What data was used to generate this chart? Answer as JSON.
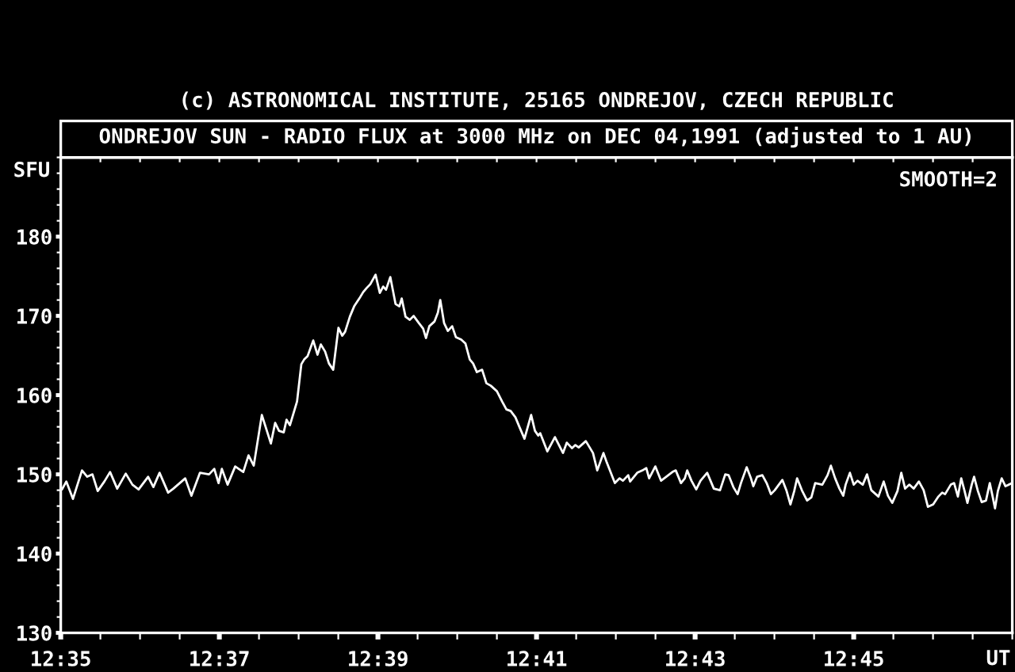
{
  "chart_data": {
    "type": "line",
    "title": "ONDREJOV SUN - RADIO FLUX at 3000 MHz on DEC 04,1991 (adjusted to 1 AU)",
    "xlabel": "UT",
    "ylabel": "SFU",
    "annotations": [
      "(c) ASTRONOMICAL INSTITUTE, 25165 ONDREJOV, CZECH REPUBLIC",
      "SMOOTH=2"
    ],
    "x": [
      12.5836,
      12.5845,
      12.5859,
      12.5878,
      12.5889,
      12.59,
      12.5911,
      12.5925,
      12.5937,
      12.5952,
      12.597,
      12.5984,
      12.5997,
      12.6017,
      12.6028,
      12.6041,
      12.6059,
      12.607,
      12.6095,
      12.6108,
      12.6126,
      12.6145,
      12.6156,
      12.6165,
      12.6172,
      12.6184,
      12.62,
      12.6217,
      12.6228,
      12.6239,
      12.6256,
      12.6275,
      12.6284,
      12.6292,
      12.6302,
      12.6308,
      12.6315,
      12.6325,
      12.633,
      12.6339,
      12.6345,
      12.6352,
      12.6364,
      12.6373,
      12.638,
      12.6389,
      12.6397,
      12.6406,
      12.6417,
      12.6425,
      12.6431,
      12.6441,
      12.645,
      12.6461,
      12.6469,
      12.6476,
      12.6484,
      12.6495,
      12.6504,
      12.6511,
      12.6517,
      12.6526,
      12.6537,
      12.6545,
      12.655,
      12.6558,
      12.6567,
      12.6575,
      12.6586,
      12.6595,
      12.6601,
      12.6608,
      12.6619,
      12.6626,
      12.6631,
      12.6639,
      12.6647,
      12.6656,
      12.6664,
      12.6675,
      12.6684,
      12.6693,
      12.67,
      12.6708,
      12.6719,
      12.6728,
      12.6737,
      12.675,
      12.6761,
      12.677,
      12.6779,
      12.6789,
      12.6798,
      12.6808,
      12.6822,
      12.683,
      12.6837,
      12.6841,
      12.6856,
      12.6872,
      12.6889,
      12.6897,
      12.6908,
      12.6915,
      12.6922,
      12.6937,
      12.6952,
      12.6961,
      12.6974,
      12.6981,
      12.6998,
      12.7008,
      12.7015,
      12.7026,
      12.703,
      12.7045,
      12.7056,
      12.7064,
      12.707,
      12.7083,
      12.7095,
      12.7106,
      12.7119,
      12.7126,
      12.7137,
      12.7145,
      12.715,
      12.7159,
      12.7169,
      12.7178,
      12.7192,
      12.7206,
      12.7219,
      12.723,
      12.7237,
      12.7247,
      12.7256,
      12.7263,
      12.7275,
      12.7284,
      12.7289,
      12.7297,
      12.7308,
      12.7317,
      12.7326,
      12.7334,
      12.735,
      12.7359,
      12.7367,
      12.7375,
      12.7381,
      12.7391,
      12.7402,
      12.7411,
      12.7419,
      12.7434,
      12.7445,
      12.7452,
      12.7461,
      12.747,
      12.7478,
      12.7483,
      12.7492,
      12.75,
      12.7508,
      12.7519,
      12.7528,
      12.7537,
      12.7552,
      12.7563,
      12.7572,
      12.7581,
      12.7592,
      12.76,
      12.7608,
      12.7617,
      12.7626,
      12.7637,
      12.7647,
      12.7656,
      12.7667,
      12.7678,
      12.7686,
      12.7692,
      12.7704,
      12.7711,
      12.7719,
      12.7726,
      12.7733,
      12.7739,
      12.7748,
      12.7753,
      12.7761,
      12.7769,
      12.7778,
      12.7786,
      12.7792,
      12.7797,
      12.7803,
      12.7811,
      12.7819,
      12.7833
    ],
    "series": [
      {
        "color": "#ffffff",
        "values": [
          148.1,
          149.1,
          146.9,
          150.5,
          149.7,
          150.0,
          147.9,
          149.1,
          150.3,
          148.2,
          150.1,
          148.7,
          148.1,
          149.7,
          148.4,
          150.2,
          147.7,
          148.2,
          149.5,
          147.3,
          150.2,
          150.0,
          150.7,
          148.9,
          150.7,
          148.7,
          151.0,
          150.3,
          152.4,
          151.1,
          157.5,
          153.9,
          156.5,
          155.5,
          155.3,
          156.9,
          156.2,
          158.2,
          159.2,
          163.9,
          164.5,
          164.9,
          166.9,
          165.1,
          166.4,
          165.5,
          164.0,
          163.2,
          168.5,
          167.5,
          168.0,
          169.9,
          171.2,
          172.2,
          173.0,
          173.5,
          174.0,
          175.2,
          172.9,
          173.7,
          173.3,
          174.9,
          171.5,
          171.2,
          172.2,
          169.9,
          169.5,
          170.0,
          169.1,
          168.4,
          167.2,
          168.7,
          169.3,
          170.4,
          172.0,
          169.1,
          168.1,
          168.7,
          167.3,
          167.0,
          166.5,
          164.5,
          164.0,
          162.9,
          163.2,
          161.5,
          161.2,
          160.5,
          159.2,
          158.2,
          158.0,
          157.2,
          155.9,
          154.5,
          157.5,
          155.5,
          154.9,
          155.2,
          152.9,
          154.7,
          152.7,
          154.0,
          153.3,
          153.7,
          153.4,
          154.2,
          152.7,
          150.5,
          152.7,
          151.5,
          148.9,
          149.5,
          149.2,
          149.9,
          149.1,
          150.2,
          150.5,
          150.8,
          149.5,
          151.0,
          149.2,
          149.7,
          150.3,
          150.5,
          148.9,
          149.5,
          150.5,
          149.2,
          148.1,
          149.2,
          150.2,
          148.2,
          148.0,
          150.0,
          149.9,
          148.4,
          147.5,
          148.9,
          150.9,
          149.5,
          148.5,
          149.7,
          149.9,
          148.9,
          147.5,
          148.0,
          149.3,
          147.9,
          146.2,
          147.9,
          149.5,
          148.0,
          146.7,
          147.1,
          148.9,
          148.7,
          149.9,
          151.1,
          149.5,
          148.2,
          147.3,
          148.7,
          150.2,
          148.7,
          149.2,
          148.7,
          150.0,
          148.0,
          147.2,
          149.1,
          147.3,
          146.4,
          147.9,
          150.2,
          148.2,
          148.7,
          148.2,
          149.1,
          148.0,
          145.9,
          146.2,
          147.2,
          147.7,
          147.5,
          148.7,
          148.9,
          147.2,
          149.5,
          147.9,
          146.4,
          148.7,
          149.7,
          147.9,
          146.5,
          146.7,
          148.9,
          147.2,
          145.7,
          147.9,
          149.5,
          148.5,
          148.9
        ]
      }
    ],
    "xlim": [
      12.583333,
      12.783333
    ],
    "ylim": [
      130,
      190
    ],
    "xticks": [
      {
        "value": 12.583333,
        "label": "12:35"
      },
      {
        "value": 12.591667,
        "label": null
      },
      {
        "value": 12.6,
        "label": null
      },
      {
        "value": 12.608333,
        "label": null
      },
      {
        "value": 12.616667,
        "label": "12:37"
      },
      {
        "value": 12.625,
        "label": null
      },
      {
        "value": 12.633333,
        "label": null
      },
      {
        "value": 12.641667,
        "label": null
      },
      {
        "value": 12.65,
        "label": "12:39"
      },
      {
        "value": 12.658333,
        "label": null
      },
      {
        "value": 12.666667,
        "label": null
      },
      {
        "value": 12.675,
        "label": null
      },
      {
        "value": 12.683333,
        "label": "12:41"
      },
      {
        "value": 12.691667,
        "label": null
      },
      {
        "value": 12.7,
        "label": null
      },
      {
        "value": 12.708333,
        "label": null
      },
      {
        "value": 12.716667,
        "label": "12:43"
      },
      {
        "value": 12.725,
        "label": null
      },
      {
        "value": 12.733333,
        "label": null
      },
      {
        "value": 12.741667,
        "label": null
      },
      {
        "value": 12.75,
        "label": "12:45"
      },
      {
        "value": 12.758333,
        "label": null
      },
      {
        "value": 12.766667,
        "label": null
      },
      {
        "value": 12.775,
        "label": null
      },
      {
        "value": 12.783333,
        "label": null
      }
    ],
    "yticks": [
      130,
      {
        "value": 132,
        "label": null
      },
      {
        "value": 134,
        "label": null
      },
      {
        "value": 136,
        "label": null
      },
      {
        "value": 138,
        "label": null
      },
      140,
      {
        "value": 142,
        "label": null
      },
      {
        "value": 144,
        "label": null
      },
      {
        "value": 146,
        "label": null
      },
      {
        "value": 148,
        "label": null
      },
      150,
      {
        "value": 152,
        "label": null
      },
      {
        "value": 154,
        "label": null
      },
      {
        "value": 156,
        "label": null
      },
      {
        "value": 158,
        "label": null
      },
      160,
      {
        "value": 162,
        "label": null
      },
      {
        "value": 164,
        "label": null
      },
      {
        "value": 166,
        "label": null
      },
      {
        "value": 168,
        "label": null
      },
      170,
      {
        "value": 172,
        "label": null
      },
      {
        "value": 174,
        "label": null
      },
      {
        "value": 176,
        "label": null
      },
      {
        "value": 178,
        "label": null
      },
      180,
      {
        "value": 182,
        "label": null
      },
      {
        "value": 184,
        "label": null
      },
      {
        "value": 186,
        "label": null
      },
      {
        "value": 188,
        "label": null
      },
      {
        "value": 190,
        "label": null
      }
    ]
  }
}
